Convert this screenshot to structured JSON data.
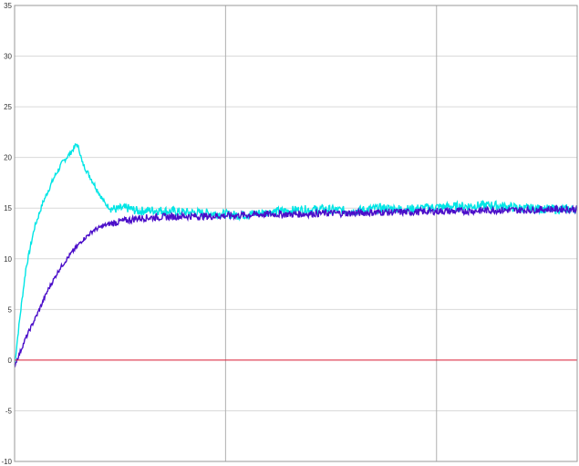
{
  "chart_data": {
    "type": "line",
    "title": "",
    "xlabel": "",
    "ylabel": "",
    "xlim": [
      0,
      1
    ],
    "ylim": [
      -10,
      35
    ],
    "y_ticks": [
      "35",
      "30",
      "25",
      "20",
      "15",
      "10",
      "5",
      "0",
      "-5",
      "-10"
    ],
    "y_tick_values": [
      35,
      30,
      25,
      20,
      15,
      10,
      5,
      0,
      -5,
      -10
    ],
    "x_grid": [
      0.375,
      0.75
    ],
    "grid": true,
    "legend": "none",
    "series": [
      {
        "color": "#00e5e5",
        "x": [
          0,
          0.01,
          0.02,
          0.035,
          0.05,
          0.07,
          0.085,
          0.1,
          0.11,
          0.115,
          0.12,
          0.13,
          0.14,
          0.15,
          0.16,
          0.17,
          0.18,
          0.2,
          0.22,
          0.25,
          0.3,
          0.35,
          0.4,
          0.45,
          0.5,
          0.55,
          0.6,
          0.65,
          0.7,
          0.75,
          0.8,
          0.85,
          0.9,
          0.95,
          1.0
        ],
        "y": [
          -0.5,
          4.5,
          9,
          13,
          15.5,
          18,
          19.5,
          20.5,
          21.3,
          20.8,
          19.5,
          18.5,
          17.5,
          16.5,
          15.5,
          15.0,
          14.9,
          15.0,
          14.7,
          14.8,
          14.6,
          14.5,
          14.3,
          14.6,
          14.8,
          14.9,
          14.7,
          15.0,
          14.9,
          15.1,
          15.2,
          15.3,
          15.0,
          14.9,
          14.9
        ]
      },
      {
        "color": "#4b0ec9",
        "x": [
          0,
          0.01,
          0.02,
          0.04,
          0.06,
          0.08,
          0.1,
          0.12,
          0.14,
          0.16,
          0.18,
          0.2,
          0.22,
          0.25,
          0.3,
          0.35,
          0.4,
          0.45,
          0.5,
          0.55,
          0.6,
          0.65,
          0.7,
          0.75,
          0.8,
          0.85,
          0.9,
          0.95,
          1.0
        ],
        "y": [
          -0.5,
          0.8,
          2.2,
          4.5,
          7,
          9,
          10.5,
          11.8,
          12.8,
          13.3,
          13.6,
          13.8,
          14.0,
          14.1,
          14.2,
          14.2,
          14.3,
          14.4,
          14.4,
          14.5,
          14.5,
          14.6,
          14.6,
          14.7,
          14.7,
          14.8,
          14.8,
          14.9,
          14.9
        ]
      },
      {
        "color": "#e0223a",
        "x": [
          0,
          1
        ],
        "y": [
          0,
          0
        ]
      }
    ]
  }
}
